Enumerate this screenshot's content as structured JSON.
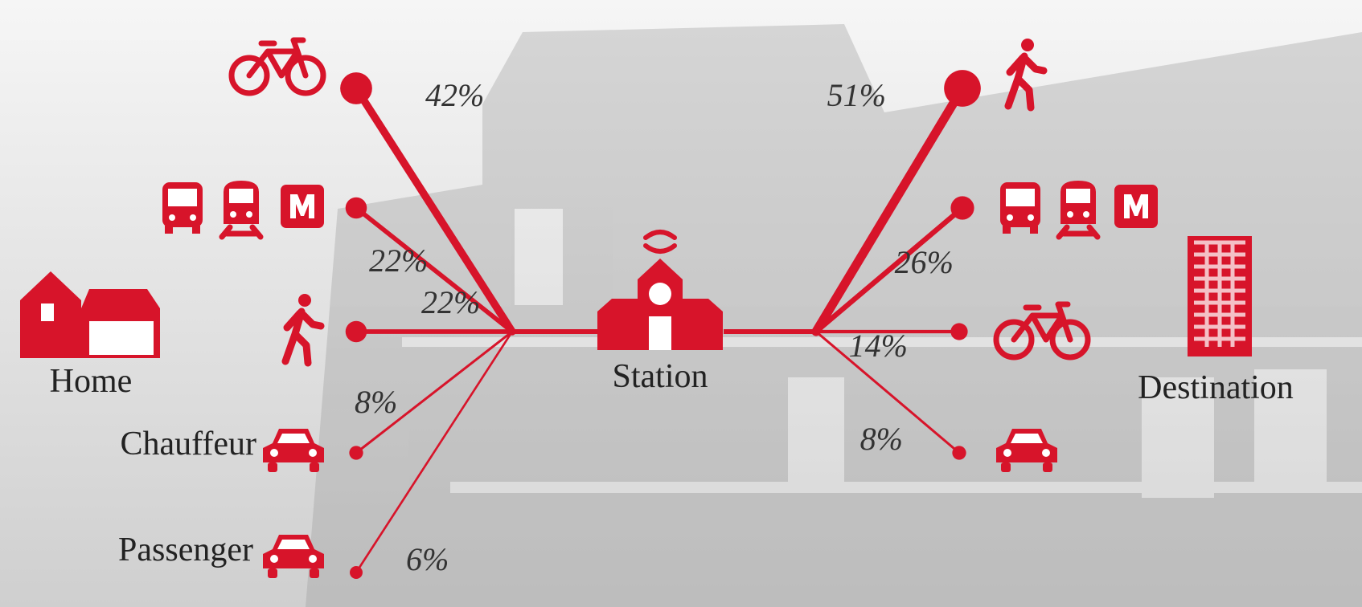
{
  "home": "Home",
  "station": "Station",
  "destination": "Destination",
  "access": [
    {
      "label": "42%",
      "share": 42
    },
    {
      "label": "22%",
      "share": 22
    },
    {
      "label": "22%",
      "share": 22
    },
    {
      "name": "Chauffeur",
      "label": "8%",
      "share": 8
    },
    {
      "name": "Passenger",
      "label": "6%",
      "share": 6
    }
  ],
  "egress": [
    {
      "label": "51%",
      "share": 51
    },
    {
      "label": "26%",
      "share": 26
    },
    {
      "label": "14%",
      "share": 14
    },
    {
      "label": "8%",
      "share": 8
    }
  ]
}
